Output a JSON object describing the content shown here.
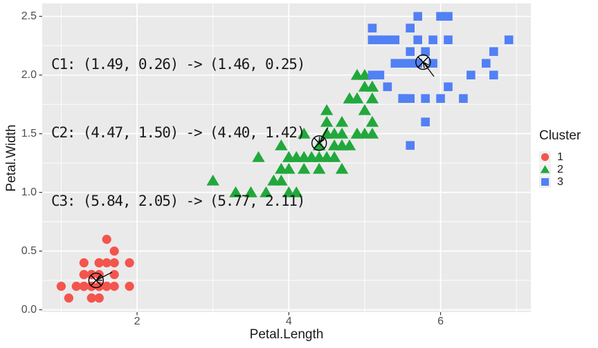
{
  "chart_data": {
    "type": "scatter",
    "title": "",
    "xlabel": "Petal.Length",
    "ylabel": "Petal.Width",
    "xlim": [
      0.75,
      7.19
    ],
    "ylim": [
      -0.02,
      2.61
    ],
    "grid": true,
    "panel_bg": "#EAEAEA",
    "grid_color": "#FFFFFF",
    "x_ticks": [
      {
        "value": 2,
        "label": "2"
      },
      {
        "value": 4,
        "label": "4"
      },
      {
        "value": 6,
        "label": "6"
      }
    ],
    "y_ticks": [
      {
        "value": 0.0,
        "label": "0.0"
      },
      {
        "value": 0.5,
        "label": "0.5"
      },
      {
        "value": 1.0,
        "label": "1.0"
      },
      {
        "value": 1.5,
        "label": "1.5"
      },
      {
        "value": 2.0,
        "label": "2.0"
      },
      {
        "value": 2.5,
        "label": "2.5"
      }
    ],
    "x_minor_ticks": [
      1,
      3,
      5,
      7
    ],
    "y_minor_ticks": [
      0.25,
      0.75,
      1.25,
      1.75,
      2.25
    ],
    "annotation_lines": [
      "C1: (1.49, 0.26) -> (1.46, 0.25)",
      "C2: (4.47, 1.50) -> (4.40, 1.42)",
      "C3: (5.84, 2.05) -> (5.77, 2.11)"
    ],
    "legend": {
      "title": "Cluster",
      "position": "right",
      "entries": [
        {
          "label": "1",
          "shape": "circle",
          "color": "#F3554D"
        },
        {
          "label": "2",
          "shape": "triangle",
          "color": "#21A83C"
        },
        {
          "label": "3",
          "shape": "square",
          "color": "#5280F5"
        }
      ]
    },
    "centroids": [
      {
        "cluster": "C1",
        "old": [
          1.49,
          0.26
        ],
        "new": [
          1.46,
          0.25
        ]
      },
      {
        "cluster": "C2",
        "old": [
          4.47,
          1.5
        ],
        "new": [
          4.4,
          1.42
        ]
      },
      {
        "cluster": "C3",
        "old": [
          5.84,
          2.05
        ],
        "new": [
          5.77,
          2.11
        ]
      }
    ],
    "series": [
      {
        "name": "1",
        "shape": "circle",
        "color": "#F3554D",
        "points": [
          [
            1.4,
            0.2
          ],
          [
            1.4,
            0.2
          ],
          [
            1.3,
            0.2
          ],
          [
            1.5,
            0.2
          ],
          [
            1.4,
            0.2
          ],
          [
            1.7,
            0.4
          ],
          [
            1.4,
            0.3
          ],
          [
            1.5,
            0.2
          ],
          [
            1.4,
            0.2
          ],
          [
            1.5,
            0.1
          ],
          [
            1.5,
            0.2
          ],
          [
            1.6,
            0.2
          ],
          [
            1.4,
            0.1
          ],
          [
            1.1,
            0.1
          ],
          [
            1.2,
            0.2
          ],
          [
            1.5,
            0.4
          ],
          [
            1.3,
            0.4
          ],
          [
            1.4,
            0.3
          ],
          [
            1.7,
            0.3
          ],
          [
            1.5,
            0.3
          ],
          [
            1.7,
            0.2
          ],
          [
            1.5,
            0.4
          ],
          [
            1.0,
            0.2
          ],
          [
            1.7,
            0.5
          ],
          [
            1.9,
            0.2
          ],
          [
            1.6,
            0.2
          ],
          [
            1.6,
            0.4
          ],
          [
            1.5,
            0.2
          ],
          [
            1.4,
            0.2
          ],
          [
            1.6,
            0.2
          ],
          [
            1.6,
            0.2
          ],
          [
            1.5,
            0.4
          ],
          [
            1.5,
            0.1
          ],
          [
            1.4,
            0.2
          ],
          [
            1.5,
            0.2
          ],
          [
            1.2,
            0.2
          ],
          [
            1.3,
            0.2
          ],
          [
            1.4,
            0.1
          ],
          [
            1.3,
            0.2
          ],
          [
            1.5,
            0.2
          ],
          [
            1.3,
            0.3
          ],
          [
            1.3,
            0.3
          ],
          [
            1.3,
            0.2
          ],
          [
            1.6,
            0.6
          ],
          [
            1.9,
            0.4
          ],
          [
            1.4,
            0.3
          ],
          [
            1.6,
            0.2
          ],
          [
            1.4,
            0.2
          ],
          [
            1.5,
            0.2
          ],
          [
            1.4,
            0.2
          ]
        ]
      },
      {
        "name": "2",
        "shape": "triangle",
        "color": "#21A83C",
        "points": [
          [
            4.7,
            1.4
          ],
          [
            4.5,
            1.5
          ],
          [
            4.9,
            1.5
          ],
          [
            4.0,
            1.3
          ],
          [
            4.6,
            1.5
          ],
          [
            4.5,
            1.3
          ],
          [
            4.7,
            1.6
          ],
          [
            3.3,
            1.0
          ],
          [
            4.6,
            1.3
          ],
          [
            3.9,
            1.4
          ],
          [
            3.5,
            1.0
          ],
          [
            4.2,
            1.5
          ],
          [
            4.0,
            1.0
          ],
          [
            4.7,
            1.4
          ],
          [
            3.6,
            1.3
          ],
          [
            4.4,
            1.4
          ],
          [
            4.5,
            1.5
          ],
          [
            4.1,
            1.0
          ],
          [
            4.5,
            1.5
          ],
          [
            3.9,
            1.1
          ],
          [
            4.8,
            1.8
          ],
          [
            4.0,
            1.3
          ],
          [
            4.9,
            1.5
          ],
          [
            4.7,
            1.2
          ],
          [
            4.3,
            1.3
          ],
          [
            4.4,
            1.4
          ],
          [
            4.8,
            1.4
          ],
          [
            5.0,
            1.7
          ],
          [
            4.5,
            1.5
          ],
          [
            3.5,
            1.0
          ],
          [
            3.8,
            1.1
          ],
          [
            3.7,
            1.0
          ],
          [
            3.9,
            1.2
          ],
          [
            5.1,
            1.6
          ],
          [
            4.5,
            1.5
          ],
          [
            4.5,
            1.6
          ],
          [
            4.7,
            1.5
          ],
          [
            4.4,
            1.3
          ],
          [
            4.1,
            1.3
          ],
          [
            4.0,
            1.3
          ],
          [
            4.4,
            1.2
          ],
          [
            4.6,
            1.4
          ],
          [
            4.0,
            1.2
          ],
          [
            3.3,
            1.0
          ],
          [
            4.2,
            1.3
          ],
          [
            4.2,
            1.2
          ],
          [
            4.2,
            1.3
          ],
          [
            4.3,
            1.3
          ],
          [
            3.0,
            1.1
          ],
          [
            4.1,
            1.3
          ],
          [
            5.1,
            1.9
          ],
          [
            4.5,
            1.7
          ],
          [
            5.0,
            2.0
          ],
          [
            5.0,
            1.5
          ],
          [
            4.9,
            2.0
          ],
          [
            4.9,
            1.8
          ],
          [
            4.8,
            1.8
          ],
          [
            4.9,
            1.8
          ],
          [
            5.1,
            1.5
          ],
          [
            4.8,
            1.8
          ],
          [
            5.1,
            1.9
          ],
          [
            5.0,
            1.9
          ],
          [
            5.1,
            1.8
          ]
        ]
      },
      {
        "name": "3",
        "shape": "square",
        "color": "#5280F5",
        "points": [
          [
            6.0,
            2.5
          ],
          [
            5.9,
            2.1
          ],
          [
            5.6,
            1.8
          ],
          [
            5.8,
            2.2
          ],
          [
            6.6,
            2.1
          ],
          [
            6.3,
            1.8
          ],
          [
            5.8,
            1.8
          ],
          [
            6.1,
            2.5
          ],
          [
            5.1,
            2.0
          ],
          [
            5.3,
            1.9
          ],
          [
            5.5,
            2.1
          ],
          [
            5.1,
            2.4
          ],
          [
            5.3,
            2.3
          ],
          [
            5.5,
            1.8
          ],
          [
            6.7,
            2.2
          ],
          [
            6.9,
            2.3
          ],
          [
            5.7,
            2.3
          ],
          [
            6.7,
            2.0
          ],
          [
            5.7,
            2.1
          ],
          [
            6.0,
            1.8
          ],
          [
            5.6,
            2.1
          ],
          [
            5.8,
            1.6
          ],
          [
            6.1,
            1.9
          ],
          [
            6.4,
            2.0
          ],
          [
            5.6,
            2.2
          ],
          [
            5.6,
            1.4
          ],
          [
            6.1,
            2.3
          ],
          [
            5.6,
            2.4
          ],
          [
            5.5,
            1.8
          ],
          [
            5.4,
            2.1
          ],
          [
            5.6,
            2.4
          ],
          [
            5.1,
            2.3
          ],
          [
            5.9,
            2.3
          ],
          [
            5.7,
            2.5
          ],
          [
            5.2,
            2.3
          ],
          [
            5.2,
            2.0
          ],
          [
            5.4,
            2.3
          ]
        ]
      }
    ]
  }
}
